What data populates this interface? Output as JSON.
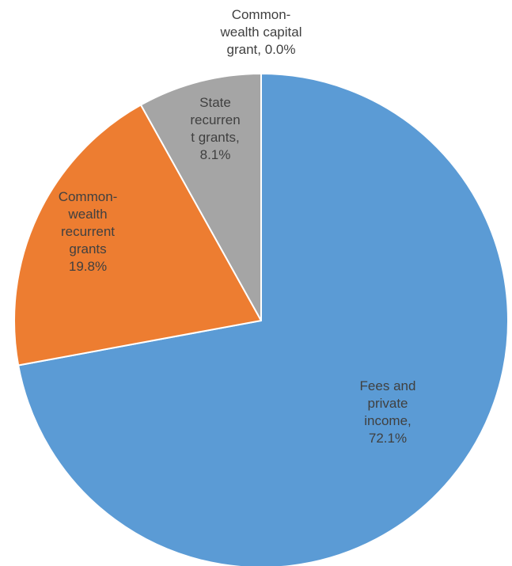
{
  "chart_data": {
    "type": "pie",
    "title": "",
    "start_angle_deg": 0,
    "direction": "clockwise",
    "slices": [
      {
        "name": "Fees and private income",
        "value": 72.1,
        "color": "#5B9BD5",
        "label_lines": [
          "Fees and",
          "private",
          "income,",
          "72.1%"
        ]
      },
      {
        "name": "Commonwealth recurrent grants",
        "value": 19.8,
        "color": "#ED7D31",
        "label_lines": [
          "Common-",
          "wealth",
          "recurrent",
          "grants",
          "19.8%"
        ]
      },
      {
        "name": "State recurrent grants",
        "value": 8.1,
        "color": "#A5A5A5",
        "label_lines": [
          "State",
          "recurren",
          "t grants,",
          "8.1%"
        ]
      },
      {
        "name": "Commonwealth capital grant",
        "value": 0.0,
        "color": "#FFC000",
        "label_lines": [
          "Common-",
          "wealth capital",
          "grant, 0.0%"
        ]
      }
    ]
  }
}
